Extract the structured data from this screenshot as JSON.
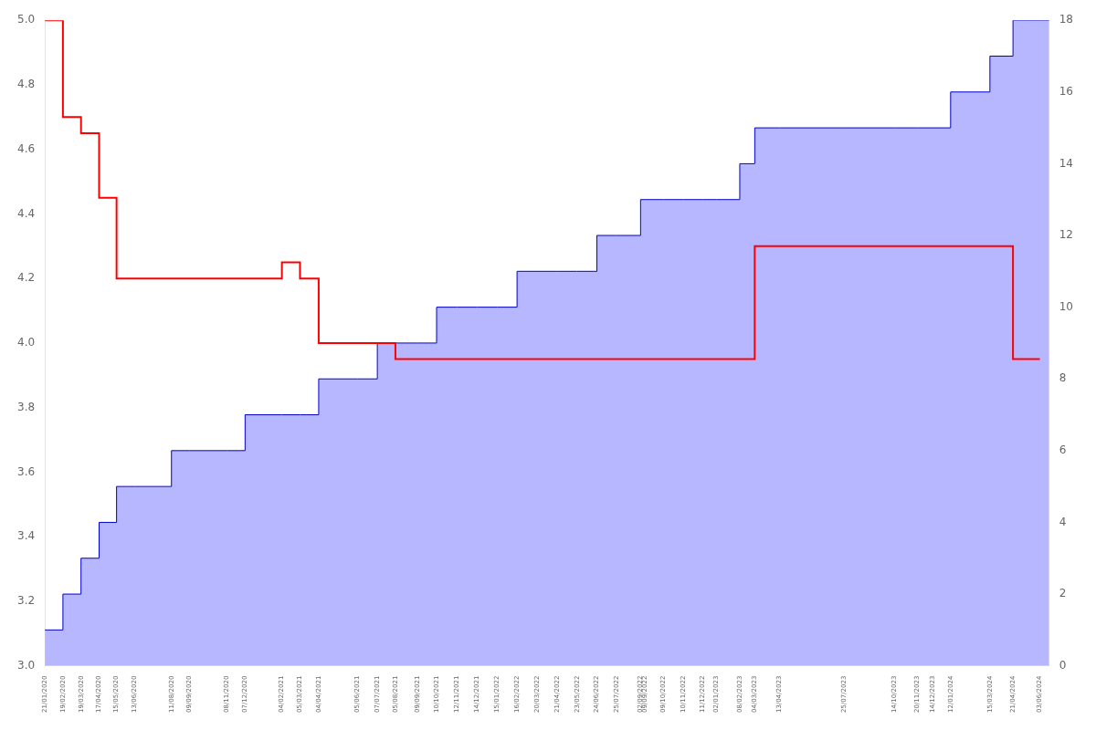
{
  "chart_data": {
    "type": "line",
    "x": [
      "21/01/2020",
      "19/02/2020",
      "19/03/2020",
      "17/04/2020",
      "15/05/2020",
      "13/06/2020",
      "11/08/2020",
      "09/09/2020",
      "08/11/2020",
      "07/12/2020",
      "04/02/2021",
      "05/03/2021",
      "04/04/2021",
      "05/06/2021",
      "07/07/2021",
      "05/08/2021",
      "09/09/2021",
      "10/10/2021",
      "12/11/2021",
      "14/12/2021",
      "15/01/2022",
      "16/02/2022",
      "20/03/2022",
      "21/04/2022",
      "23/05/2022",
      "24/06/2022",
      "25/07/2022",
      "02/09/2022",
      "09/09/2022",
      "09/10/2022",
      "10/11/2022",
      "11/12/2022",
      "02/01/2023",
      "08/02/2023",
      "04/03/2023",
      "13/04/2023",
      "25/07/2023",
      "14/10/2023",
      "20/11/2023",
      "14/12/2023",
      "12/01/2024",
      "15/03/2024",
      "21/04/2024",
      "03/06/2024"
    ],
    "xlim": [
      "21/01/2020",
      "18/06/2024"
    ],
    "xticks": [
      "21/01/2020",
      "19/02/2020",
      "19/03/2020",
      "17/04/2020",
      "15/05/2020",
      "13/06/2020",
      "11/08/2020",
      "09/09/2020",
      "08/11/2020",
      "07/12/2020",
      "04/02/2021",
      "05/03/2021",
      "04/04/2021",
      "05/06/2021",
      "07/07/2021",
      "05/08/2021",
      "09/09/2021",
      "10/10/2021",
      "12/11/2021",
      "14/12/2021",
      "15/01/2022",
      "16/02/2022",
      "20/03/2022",
      "21/04/2022",
      "23/05/2022",
      "24/06/2022",
      "25/07/2022",
      "02/09/2022",
      "09/09/2022",
      "09/10/2022",
      "10/11/2022",
      "11/12/2022",
      "02/01/2023",
      "08/02/2023",
      "04/03/2023",
      "13/04/2023",
      "25/07/2023",
      "14/10/2023",
      "20/11/2023",
      "14/12/2023",
      "12/01/2024",
      "15/03/2024",
      "21/04/2024",
      "03/06/2024"
    ],
    "ylim": [
      3.0,
      5.0
    ],
    "yticks": [
      {
        "value": 3.0,
        "label": "3.0"
      },
      3.2,
      3.4,
      3.6,
      3.8,
      {
        "value": 4.0,
        "label": "4.0"
      },
      4.2,
      4.4,
      4.6,
      4.8,
      {
        "value": 5.0,
        "label": "5.0"
      }
    ],
    "y2lim": [
      0,
      18
    ],
    "y2ticks": [
      0,
      2,
      4,
      6,
      8,
      10,
      12,
      14,
      16,
      18
    ],
    "grid": false,
    "series": [
      {
        "type": "line",
        "line_style": "steps",
        "color": "#ff0000",
        "values": [
          5.0,
          5.0,
          4.7,
          4.65,
          4.45,
          4.2,
          4.2,
          4.2,
          4.2,
          4.2,
          4.2,
          4.25,
          4.2,
          4.0,
          4.0,
          4.0,
          3.95,
          3.95,
          3.95,
          3.95,
          3.95,
          3.95,
          3.95,
          3.95,
          3.95,
          3.95,
          3.95,
          3.95,
          3.95,
          3.95,
          3.95,
          3.95,
          3.95,
          3.95,
          3.95,
          4.3,
          4.3,
          4.3,
          4.3,
          4.3,
          4.3,
          4.3,
          4.3,
          3.95
        ]
      },
      {
        "type": "bar",
        "axis": "y2",
        "color": "#aaaaff",
        "values": [
          1,
          1,
          2,
          3,
          4,
          5,
          5,
          6,
          6,
          6,
          7,
          7,
          7,
          8,
          8,
          9,
          9,
          9,
          10,
          10,
          10,
          10,
          11,
          11,
          11,
          11,
          12,
          12,
          13,
          13,
          13,
          13,
          13,
          13,
          14,
          15,
          15,
          15,
          15,
          15,
          15,
          16,
          17,
          18
        ]
      }
    ]
  }
}
